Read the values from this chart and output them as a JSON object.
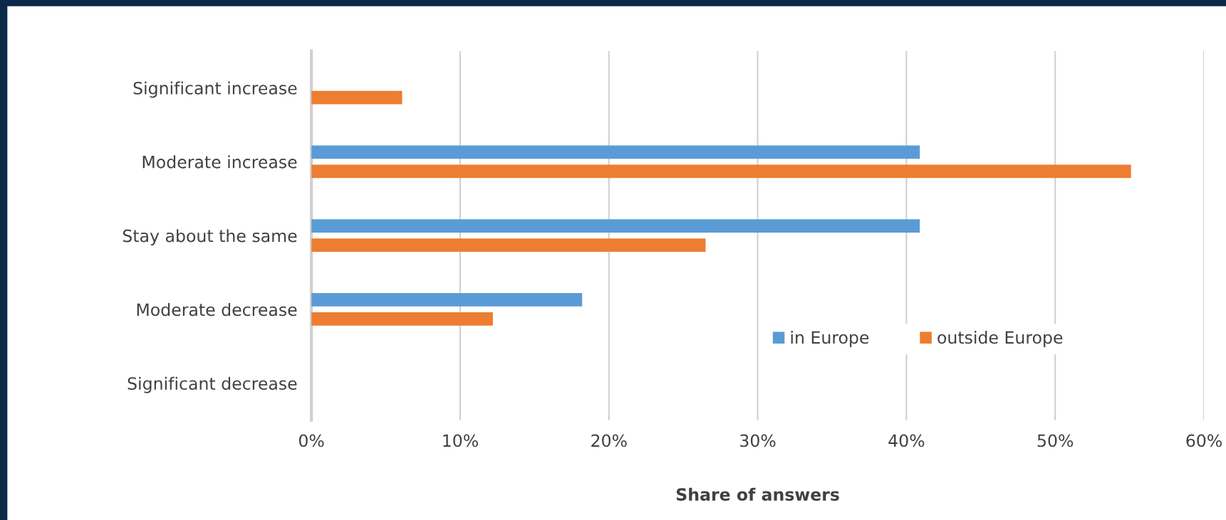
{
  "chart_data": {
    "type": "bar",
    "orientation": "horizontal",
    "xlabel": "Share of answers",
    "categories": [
      "Significant increase",
      "Moderate increase",
      "Stay about the same",
      "Moderate decrease",
      "Significant decrease"
    ],
    "series": [
      {
        "name": "in Europe",
        "color": "#5b9bd5",
        "values": [
          null,
          40.9,
          40.9,
          18.2,
          null
        ]
      },
      {
        "name": "outside Europe",
        "color": "#ed7d31",
        "values": [
          6.1,
          55.1,
          26.5,
          12.2,
          null
        ]
      }
    ],
    "xlim": [
      0,
      60
    ],
    "xticks": [
      {
        "value": 0,
        "label": "0%"
      },
      {
        "value": 10,
        "label": "10%"
      },
      {
        "value": 20,
        "label": "20%"
      },
      {
        "value": 30,
        "label": "30%"
      },
      {
        "value": 40,
        "label": "40%"
      },
      {
        "value": 50,
        "label": "50%"
      },
      {
        "value": 60,
        "label": "60%"
      }
    ],
    "grid": "x",
    "legend": "right"
  }
}
